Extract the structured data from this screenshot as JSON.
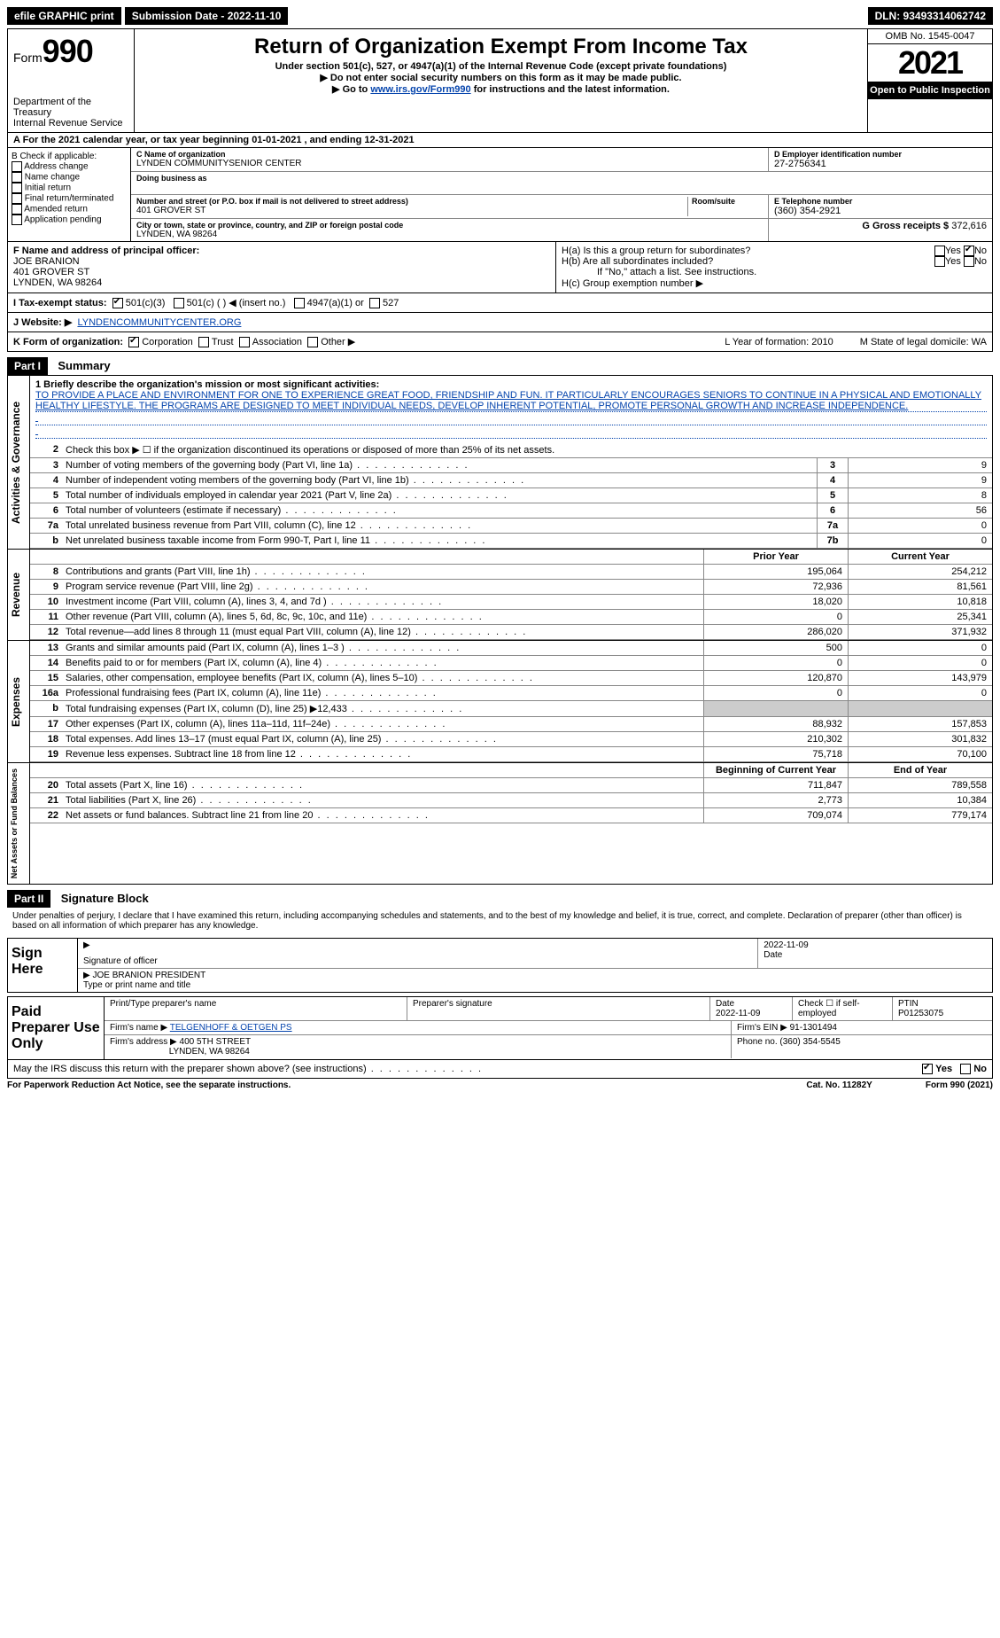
{
  "topbar": {
    "efile": "efile GRAPHIC print",
    "sub_label": "Submission Date - 2022-11-10",
    "dln": "DLN: 93493314062742"
  },
  "header": {
    "form_word": "Form",
    "form_num": "990",
    "dept": "Department of the Treasury",
    "irs": "Internal Revenue Service",
    "title": "Return of Organization Exempt From Income Tax",
    "sub1": "Under section 501(c), 527, or 4947(a)(1) of the Internal Revenue Code (except private foundations)",
    "sub2": "▶ Do not enter social security numbers on this form as it may be made public.",
    "sub3_pre": "▶ Go to ",
    "sub3_link": "www.irs.gov/Form990",
    "sub3_post": " for instructions and the latest information.",
    "omb": "OMB No. 1545-0047",
    "year": "2021",
    "open": "Open to Public Inspection"
  },
  "lineA": "A For the 2021 calendar year, or tax year beginning 01-01-2021    , and ending 12-31-2021",
  "boxB": {
    "label": "B Check if applicable:",
    "opts": [
      "Address change",
      "Name change",
      "Initial return",
      "Final return/terminated",
      "Amended return",
      "Application pending"
    ]
  },
  "boxC": {
    "label": "C Name of organization",
    "name": "LYNDEN COMMUNITYSENIOR CENTER",
    "dba_label": "Doing business as",
    "addr_label": "Number and street (or P.O. box if mail is not delivered to street address)",
    "room_label": "Room/suite",
    "addr": "401 GROVER ST",
    "city_label": "City or town, state or province, country, and ZIP or foreign postal code",
    "city": "LYNDEN, WA  98264"
  },
  "boxD": {
    "label": "D Employer identification number",
    "val": "27-2756341"
  },
  "boxE": {
    "label": "E Telephone number",
    "val": "(360) 354-2921"
  },
  "boxG": {
    "label": "G Gross receipts $",
    "val": "372,616"
  },
  "boxF": {
    "label": "F Name and address of principal officer:",
    "name": "JOE BRANION",
    "addr": "401 GROVER ST",
    "city": "LYNDEN, WA  98264"
  },
  "boxH": {
    "a": "H(a)  Is this a group return for subordinates?",
    "b": "H(b)  Are all subordinates included?",
    "b_note": "If \"No,\" attach a list. See instructions.",
    "c": "H(c)  Group exemption number ▶",
    "yes": "Yes",
    "no": "No"
  },
  "taxI": {
    "label": "I  Tax-exempt status:",
    "o1": "501(c)(3)",
    "o2": "501(c) (   ) ◀ (insert no.)",
    "o3": "4947(a)(1) or",
    "o4": "527"
  },
  "webJ": {
    "label": "J  Website: ▶",
    "val": "LYNDENCOMMUNITYCENTER.ORG"
  },
  "lineK": {
    "label": "K Form of organization:",
    "o1": "Corporation",
    "o2": "Trust",
    "o3": "Association",
    "o4": "Other ▶",
    "L": "L Year of formation: 2010",
    "M": "M State of legal domicile: WA"
  },
  "part1": {
    "tag": "Part I",
    "title": "Summary"
  },
  "mission": {
    "label": "1  Briefly describe the organization's mission or most significant activities:",
    "text": "TO PROVIDE A PLACE AND ENVIRONMENT FOR ONE TO EXPERIENCE GREAT FOOD, FRIENDSHIP AND FUN. IT PARTICULARLY ENCOURAGES SENIORS TO CONTINUE IN A PHYSICAL AND EMOTIONALLY HEALTHY LIFESTYLE. THE PROGRAMS ARE DESIGNED TO MEET INDIVIDUAL NEEDS, DEVELOP INHERENT POTENTIAL, PROMOTE PERSONAL GROWTH AND INCREASE INDEPENDENCE."
  },
  "gov_rows": [
    {
      "n": "2",
      "d": "Check this box ▶ ☐ if the organization discontinued its operations or disposed of more than 25% of its net assets."
    },
    {
      "n": "3",
      "d": "Number of voting members of the governing body (Part VI, line 1a)",
      "box": "3",
      "v": "9"
    },
    {
      "n": "4",
      "d": "Number of independent voting members of the governing body (Part VI, line 1b)",
      "box": "4",
      "v": "9"
    },
    {
      "n": "5",
      "d": "Total number of individuals employed in calendar year 2021 (Part V, line 2a)",
      "box": "5",
      "v": "8"
    },
    {
      "n": "6",
      "d": "Total number of volunteers (estimate if necessary)",
      "box": "6",
      "v": "56"
    },
    {
      "n": "7a",
      "d": "Total unrelated business revenue from Part VIII, column (C), line 12",
      "box": "7a",
      "v": "0"
    },
    {
      "n": "b",
      "d": "Net unrelated business taxable income from Form 990-T, Part I, line 11",
      "box": "7b",
      "v": "0"
    }
  ],
  "col_hdr": {
    "prior": "Prior Year",
    "current": "Current Year"
  },
  "rev_rows": [
    {
      "n": "8",
      "d": "Contributions and grants (Part VIII, line 1h)",
      "p": "195,064",
      "c": "254,212"
    },
    {
      "n": "9",
      "d": "Program service revenue (Part VIII, line 2g)",
      "p": "72,936",
      "c": "81,561"
    },
    {
      "n": "10",
      "d": "Investment income (Part VIII, column (A), lines 3, 4, and 7d )",
      "p": "18,020",
      "c": "10,818"
    },
    {
      "n": "11",
      "d": "Other revenue (Part VIII, column (A), lines 5, 6d, 8c, 9c, 10c, and 11e)",
      "p": "0",
      "c": "25,341"
    },
    {
      "n": "12",
      "d": "Total revenue—add lines 8 through 11 (must equal Part VIII, column (A), line 12)",
      "p": "286,020",
      "c": "371,932"
    }
  ],
  "exp_rows": [
    {
      "n": "13",
      "d": "Grants and similar amounts paid (Part IX, column (A), lines 1–3 )",
      "p": "500",
      "c": "0"
    },
    {
      "n": "14",
      "d": "Benefits paid to or for members (Part IX, column (A), line 4)",
      "p": "0",
      "c": "0"
    },
    {
      "n": "15",
      "d": "Salaries, other compensation, employee benefits (Part IX, column (A), lines 5–10)",
      "p": "120,870",
      "c": "143,979"
    },
    {
      "n": "16a",
      "d": "Professional fundraising fees (Part IX, column (A), line 11e)",
      "p": "0",
      "c": "0"
    },
    {
      "n": "b",
      "d": "Total fundraising expenses (Part IX, column (D), line 25) ▶12,433",
      "p": "",
      "c": "",
      "grey": true
    },
    {
      "n": "17",
      "d": "Other expenses (Part IX, column (A), lines 11a–11d, 11f–24e)",
      "p": "88,932",
      "c": "157,853"
    },
    {
      "n": "18",
      "d": "Total expenses. Add lines 13–17 (must equal Part IX, column (A), line 25)",
      "p": "210,302",
      "c": "301,832"
    },
    {
      "n": "19",
      "d": "Revenue less expenses. Subtract line 18 from line 12",
      "p": "75,718",
      "c": "70,100"
    }
  ],
  "net_hdr": {
    "begin": "Beginning of Current Year",
    "end": "End of Year"
  },
  "net_rows": [
    {
      "n": "20",
      "d": "Total assets (Part X, line 16)",
      "p": "711,847",
      "c": "789,558"
    },
    {
      "n": "21",
      "d": "Total liabilities (Part X, line 26)",
      "p": "2,773",
      "c": "10,384"
    },
    {
      "n": "22",
      "d": "Net assets or fund balances. Subtract line 21 from line 20",
      "p": "709,074",
      "c": "779,174"
    }
  ],
  "sides": {
    "gov": "Activities & Governance",
    "rev": "Revenue",
    "exp": "Expenses",
    "net": "Net Assets or Fund Balances"
  },
  "part2": {
    "tag": "Part II",
    "title": "Signature Block"
  },
  "sig": {
    "decl": "Under penalties of perjury, I declare that I have examined this return, including accompanying schedules and statements, and to the best of my knowledge and belief, it is true, correct, and complete. Declaration of preparer (other than officer) is based on all information of which preparer has any knowledge.",
    "sign_here": "Sign Here",
    "sig_officer": "Signature of officer",
    "date": "2022-11-09",
    "date_lbl": "Date",
    "name": "JOE BRANION  PRESIDENT",
    "name_lbl": "Type or print name and title"
  },
  "paid": {
    "label": "Paid Preparer Use Only",
    "h1": "Print/Type preparer's name",
    "h2": "Preparer's signature",
    "h3": "Date",
    "h3v": "2022-11-09",
    "h4": "Check ☐ if self-employed",
    "h5": "PTIN",
    "h5v": "P01253075",
    "firm_lbl": "Firm's name    ▶",
    "firm": "TELGENHOFF & OETGEN PS",
    "ein_lbl": "Firm's EIN ▶",
    "ein": "91-1301494",
    "addr_lbl": "Firm's address ▶",
    "addr": "400 5TH STREET",
    "city": "LYNDEN, WA  98264",
    "phone_lbl": "Phone no.",
    "phone": "(360) 354-5545"
  },
  "discuss": {
    "q": "May the IRS discuss this return with the preparer shown above? (see instructions)",
    "yes": "Yes",
    "no": "No"
  },
  "footer": {
    "left": "For Paperwork Reduction Act Notice, see the separate instructions.",
    "mid": "Cat. No. 11282Y",
    "right": "Form 990 (2021)"
  }
}
